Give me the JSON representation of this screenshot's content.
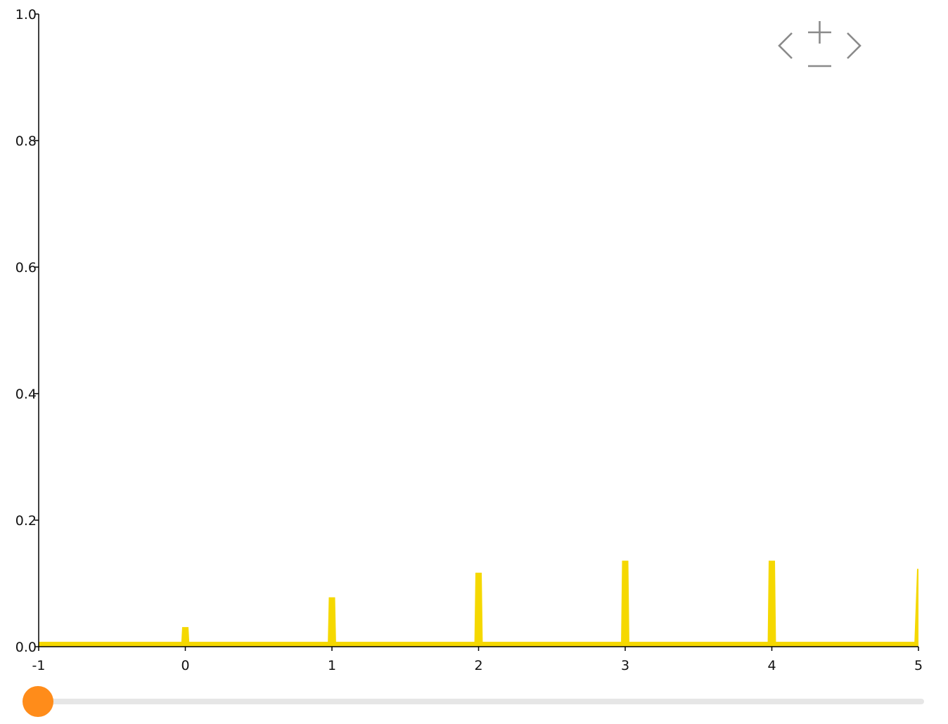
{
  "chart_data": {
    "type": "area",
    "title": "",
    "xlabel": "",
    "ylabel": "",
    "xlim": [
      -1,
      5
    ],
    "ylim": [
      0,
      1
    ],
    "x_ticks": [
      "-1",
      "0",
      "1",
      "2",
      "3",
      "4",
      "5"
    ],
    "y_ticks": [
      "0.0",
      "0.2",
      "0.4",
      "0.6",
      "0.8",
      "1.0"
    ],
    "baseline": 0.005,
    "spikes": [
      {
        "x": 0,
        "y": 0.031
      },
      {
        "x": 1,
        "y": 0.078
      },
      {
        "x": 2,
        "y": 0.117
      },
      {
        "x": 3,
        "y": 0.136
      },
      {
        "x": 4,
        "y": 0.136
      },
      {
        "x": 5,
        "y": 0.123
      }
    ],
    "color": "#f5d800",
    "grid": false,
    "legend": "none"
  },
  "controls": {
    "nav_icons": [
      "pan-left-icon",
      "zoom-in-icon",
      "zoom-out-icon",
      "pan-right-icon"
    ],
    "nav_color": "#8a8a8a",
    "slider": {
      "value": 0,
      "handle_color": "#ff8c1a",
      "track_color": "#e6e6e6"
    }
  }
}
